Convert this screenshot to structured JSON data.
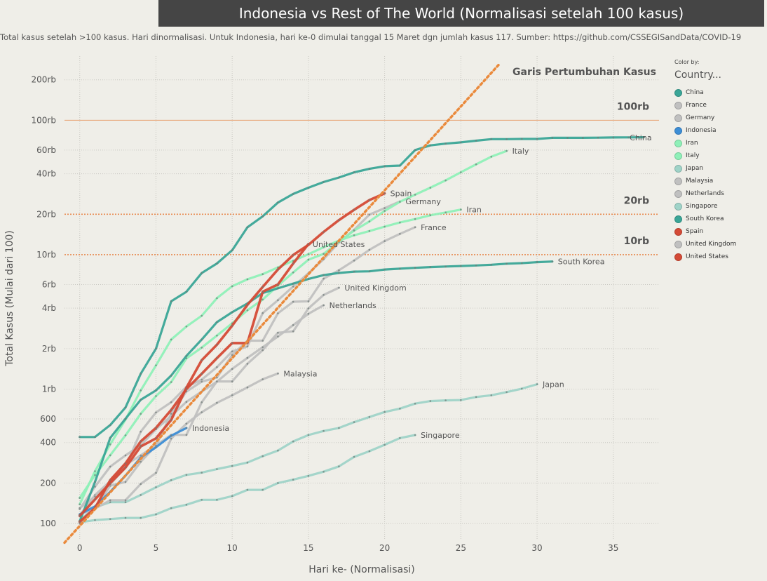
{
  "title": "Indonesia vs Rest of The World (Normalisasi setelah 100 kasus)",
  "subtitle": "Total kasus setelah >100 kasus. Hari dinormalisasi. Untuk Indonesia, hari ke-0 dimulai tanggal 15 Maret dgn jumlah kasus 117. Sumber: https://github.com/CSSEGISandData/COVID-19",
  "legend": {
    "color_by": "Color by:",
    "title": "Country..."
  },
  "chart_data": {
    "type": "line",
    "xlabel": "Hari ke- (Normalisasi)",
    "ylabel": "Total Kasus (Mulai dari 100)",
    "x_scale": "linear",
    "y_scale": "log",
    "xlim": [
      -1,
      38
    ],
    "ylim": [
      75,
      300000
    ],
    "x_ticks": [
      0,
      5,
      10,
      15,
      20,
      25,
      30,
      35
    ],
    "y_ticks": [
      {
        "value": 100,
        "label": "100"
      },
      {
        "value": 200,
        "label": "200"
      },
      {
        "value": 400,
        "label": "400"
      },
      {
        "value": 600,
        "label": "600"
      },
      {
        "value": 1000,
        "label": "1rb"
      },
      {
        "value": 2000,
        "label": "2rb"
      },
      {
        "value": 4000,
        "label": "4rb"
      },
      {
        "value": 6000,
        "label": "6rb"
      },
      {
        "value": 10000,
        "label": "10rb"
      },
      {
        "value": 20000,
        "label": "20rb"
      },
      {
        "value": 40000,
        "label": "40rb"
      },
      {
        "value": 60000,
        "label": "60rb"
      },
      {
        "value": 100000,
        "label": "100rb"
      },
      {
        "value": 200000,
        "label": "200rb"
      }
    ],
    "grid": true,
    "reference_lines": [
      {
        "value": 100000,
        "label": "100rb",
        "color": "#e8a070",
        "dash": false
      },
      {
        "value": 20000,
        "label": "20rb",
        "color": "#e88a50",
        "dash": true
      },
      {
        "value": 10000,
        "label": "10rb",
        "color": "#e88a50",
        "dash": true
      }
    ],
    "growth_line": {
      "label": "Garis Pertumbuhan Kasus",
      "x": [
        -1,
        27.5
      ],
      "y": [
        72,
        260000
      ],
      "color": "#ea8a3c"
    },
    "series": [
      {
        "name": "China",
        "color": "#3aa597",
        "x": [
          0,
          1,
          2,
          3,
          4,
          5,
          6,
          7,
          8,
          9,
          10,
          11,
          12,
          13,
          14,
          15,
          16,
          17,
          18,
          19,
          20,
          21,
          22,
          23,
          24,
          25,
          26,
          27,
          28,
          29,
          30,
          31,
          32,
          33,
          34,
          35,
          36,
          37
        ],
        "y": [
          440,
          440,
          540,
          730,
          1300,
          2000,
          4500,
          5300,
          7300,
          8600,
          10800,
          16000,
          19300,
          24400,
          28300,
          31500,
          34700,
          37500,
          41000,
          43500,
          45500,
          46000,
          60000,
          65000,
          67000,
          68500,
          70500,
          72400,
          72400,
          72600,
          72600,
          74000,
          74000,
          74000,
          74200,
          74500,
          74600,
          74800
        ]
      },
      {
        "name": "South Korea",
        "color": "#3aa597",
        "x": [
          0,
          1,
          2,
          3,
          4,
          5,
          6,
          7,
          8,
          9,
          10,
          11,
          12,
          13,
          14,
          15,
          16,
          17,
          18,
          19,
          20,
          21,
          22,
          23,
          24,
          25,
          26,
          27,
          28,
          29,
          30,
          31
        ],
        "y": [
          104,
          204,
          433,
          602,
          833,
          977,
          1261,
          1766,
          2337,
          3150,
          3736,
          4335,
          5186,
          5621,
          6088,
          6593,
          7041,
          7313,
          7478,
          7513,
          7755,
          7869,
          7979,
          8086,
          8162,
          8236,
          8320,
          8413,
          8565,
          8652,
          8799,
          8897
        ]
      },
      {
        "name": "Italy",
        "color": "#8ff0b8",
        "x": [
          0,
          1,
          2,
          3,
          4,
          5,
          6,
          7,
          8,
          9,
          10,
          11,
          12,
          13,
          14,
          15,
          16,
          17,
          18,
          19,
          20,
          21,
          22,
          23,
          24,
          25,
          26,
          27,
          28
        ],
        "y": [
          155,
          229,
          322,
          453,
          655,
          888,
          1128,
          1694,
          2036,
          2502,
          3089,
          3858,
          4636,
          5883,
          7375,
          9172,
          10149,
          12462,
          15113,
          17660,
          21157,
          24747,
          27980,
          31506,
          35713,
          41035,
          47021,
          53578,
          59138
        ]
      },
      {
        "name": "Iran",
        "color": "#8ff0b8",
        "x": [
          0,
          1,
          2,
          3,
          4,
          5,
          6,
          7,
          8,
          9,
          10,
          11,
          12,
          13,
          14,
          15,
          16,
          17,
          18,
          19,
          20,
          21,
          22,
          23,
          24,
          25
        ],
        "y": [
          139,
          245,
          388,
          593,
          978,
          1501,
          2336,
          2922,
          3513,
          4747,
          5823,
          6566,
          7161,
          8042,
          9000,
          10075,
          11364,
          12729,
          13938,
          14991,
          16169,
          17361,
          18407,
          19644,
          20610,
          21638
        ]
      },
      {
        "name": "Spain",
        "color": "#d44a36",
        "x": [
          0,
          1,
          2,
          3,
          4,
          5,
          6,
          7,
          8,
          9,
          10,
          11,
          12,
          13,
          14,
          15,
          16,
          17,
          18,
          19,
          20
        ],
        "y": [
          114,
          151,
          200,
          261,
          374,
          430,
          589,
          1024,
          1639,
          2140,
          2965,
          4231,
          5753,
          7753,
          9942,
          11826,
          14769,
          18077,
          21571,
          25496,
          28572
        ]
      },
      {
        "name": "United States",
        "color": "#d44a36",
        "x": [
          0,
          1,
          2,
          3,
          4,
          5,
          6,
          7,
          8,
          9,
          10,
          11,
          12,
          13,
          14,
          15
        ],
        "y": [
          103,
          130,
          210,
          280,
          408,
          515,
          700,
          1000,
          1300,
          1700,
          2200,
          2200,
          5300,
          6000,
          8600,
          12000
        ]
      },
      {
        "name": "Germany",
        "color": "#c0c0c0",
        "x": [
          0,
          1,
          2,
          3,
          4,
          5,
          6,
          7,
          8,
          9,
          10,
          11,
          12,
          13,
          14,
          15,
          16,
          17,
          18,
          19,
          20,
          21
        ],
        "y": [
          130,
          159,
          196,
          262,
          482,
          670,
          799,
          1040,
          1176,
          1457,
          1908,
          2078,
          3675,
          4585,
          5795,
          7272,
          9257,
          12327,
          15320,
          19848,
          22213,
          24873
        ]
      },
      {
        "name": "France",
        "color": "#c0c0c0",
        "x": [
          0,
          1,
          2,
          3,
          4,
          5,
          6,
          7,
          8,
          9,
          10,
          11,
          12,
          13,
          14,
          15,
          16,
          17,
          18,
          19,
          20,
          21,
          22
        ],
        "y": [
          100,
          130,
          191,
          204,
          288,
          380,
          656,
          959,
          1136,
          1219,
          1794,
          2293,
          2293,
          3661,
          4469,
          4499,
          6633,
          7652,
          9043,
          10871,
          12612,
          14282,
          16018
        ]
      },
      {
        "name": "United Kingdom",
        "color": "#c0c0c0",
        "x": [
          0,
          1,
          2,
          3,
          4,
          5,
          6,
          7,
          8,
          9,
          10,
          11,
          12,
          13,
          14,
          15,
          16,
          17
        ],
        "y": [
          115,
          163,
          206,
          273,
          321,
          382,
          456,
          456,
          798,
          1140,
          1140,
          1543,
          1950,
          2626,
          2689,
          3983,
          5018,
          5683
        ]
      },
      {
        "name": "Netherlands",
        "color": "#c0c0c0",
        "x": [
          0,
          1,
          2,
          3,
          4,
          5,
          6,
          7,
          8,
          9,
          10,
          11,
          12,
          13,
          14,
          15,
          16
        ],
        "y": [
          128,
          188,
          265,
          321,
          382,
          503,
          631,
          804,
          959,
          1135,
          1413,
          1705,
          2051,
          2460,
          2994,
          3631,
          4204
        ]
      },
      {
        "name": "Malaysia",
        "color": "#c0c0c0",
        "x": [
          0,
          1,
          2,
          3,
          4,
          5,
          6,
          7,
          8,
          9,
          10,
          11,
          12,
          13
        ],
        "y": [
          117,
          129,
          149,
          149,
          197,
          238,
          428,
          553,
          673,
          790,
          900,
          1030,
          1183,
          1306
        ]
      },
      {
        "name": "Japan",
        "color": "#9fd3c8",
        "x": [
          0,
          1,
          2,
          3,
          4,
          5,
          6,
          7,
          8,
          9,
          10,
          11,
          12,
          13,
          14,
          15,
          16,
          17,
          18,
          19,
          20,
          21,
          22,
          23,
          24,
          25,
          26,
          27,
          28,
          29,
          30
        ],
        "y": [
          105,
          132,
          144,
          144,
          163,
          186,
          210,
          230,
          239,
          254,
          268,
          284,
          317,
          349,
          408,
          455,
          488,
          514,
          568,
          620,
          675,
          716,
          780,
          814,
          824,
          829,
          873,
          900,
          950,
          1007,
          1086
        ]
      },
      {
        "name": "Singapore",
        "color": "#9fd3c8",
        "x": [
          0,
          1,
          2,
          3,
          4,
          5,
          6,
          7,
          8,
          9,
          10,
          11,
          12,
          13,
          14,
          15,
          16,
          17,
          18,
          19,
          20,
          21,
          22
        ],
        "y": [
          102,
          106,
          108,
          110,
          110,
          117,
          130,
          138,
          150,
          150,
          160,
          178,
          178,
          200,
          212,
          226,
          243,
          266,
          313,
          345,
          385,
          432,
          455
        ]
      },
      {
        "name": "Indonesia",
        "color": "#3d8ed6",
        "x": [
          0,
          1,
          2,
          3,
          4,
          5,
          6,
          7
        ],
        "y": [
          117,
          134,
          172,
          227,
          309,
          369,
          450,
          514
        ]
      }
    ]
  }
}
